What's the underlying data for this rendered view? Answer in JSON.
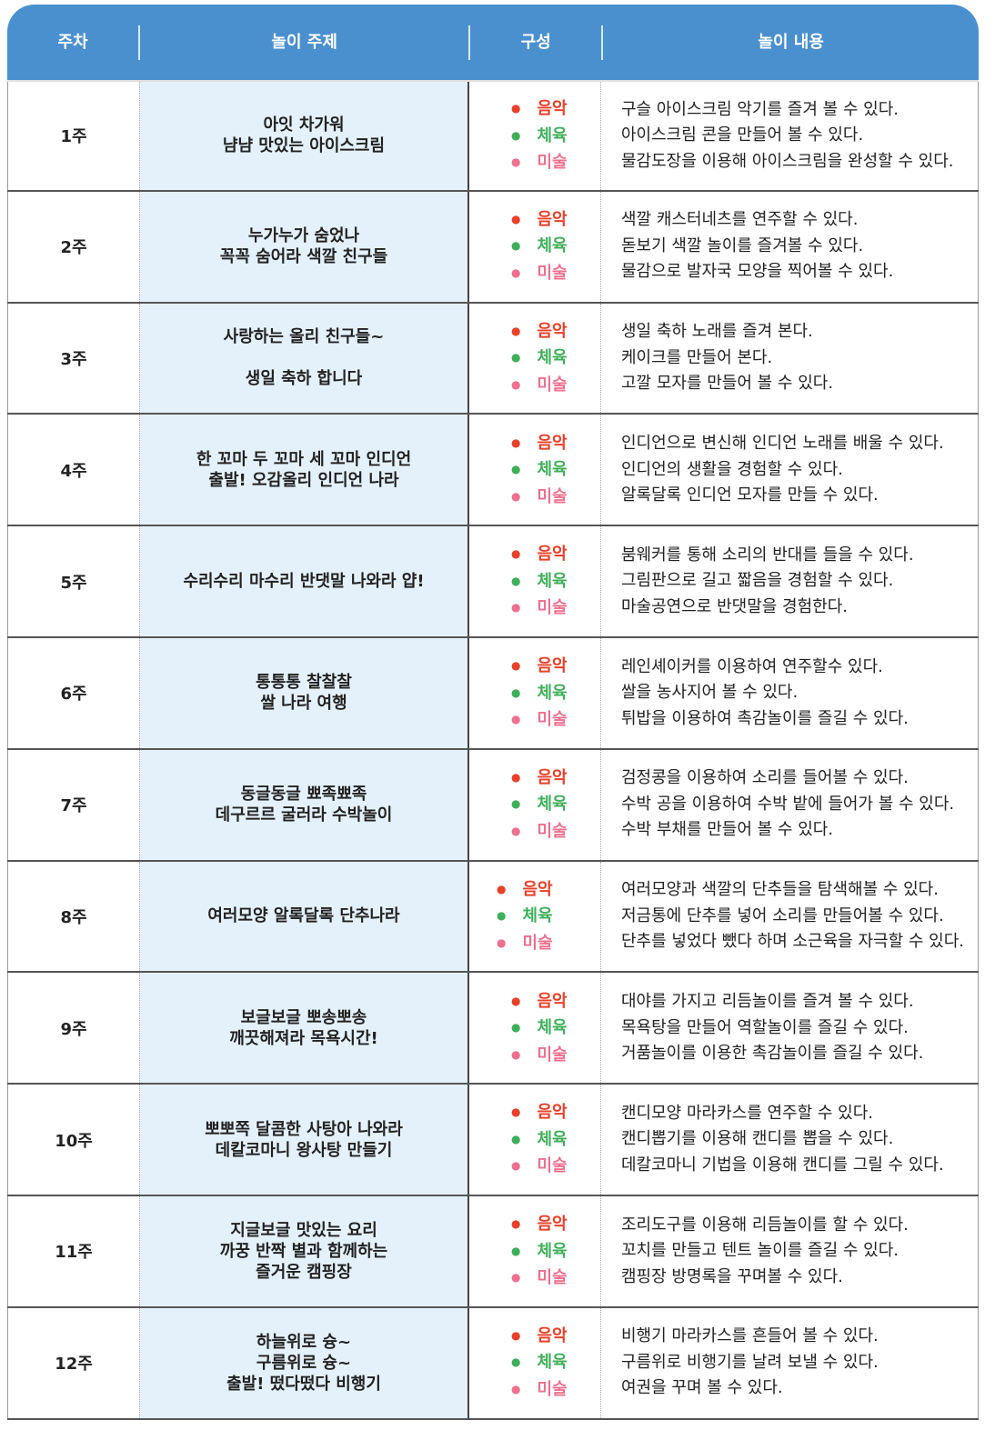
{
  "header": {
    "week": "주차",
    "topic": "놀이 주제",
    "composition": "구성",
    "content": "놀이 내용"
  },
  "colors": {
    "header_bg": "#4a90cf",
    "topic_bg": "#e4f1fa",
    "music": "#e8402a",
    "pe": "#3fae5a",
    "art": "#ee6f8e"
  },
  "components": [
    "음악",
    "체육",
    "미술"
  ],
  "rows": [
    {
      "week": "1주",
      "topic": "아잇 차가워\n냠냠 맛있는 아이스크림",
      "content": [
        "구슬 아이스크림 악기를 즐겨 볼 수 있다.",
        "아이스크림 콘을 만들어 볼 수 있다.",
        "물감도장을 이용해 아이스크림을 완성할 수 있다."
      ]
    },
    {
      "week": "2주",
      "topic": "누가누가 숨었나\n꼭꼭 숨어라 색깔 친구들",
      "content": [
        "색깔 캐스터네츠를 연주할 수 있다.",
        "돋보기 색깔 놀이를 즐겨볼 수 있다.",
        "물감으로 발자국 모양을 찍어볼 수 있다."
      ]
    },
    {
      "week": "3주",
      "topic": "사랑하는 올리 친구들~\n\n생일 축하 합니다",
      "content": [
        "생일 축하 노래를 즐겨 본다.",
        "케이크를 만들어 본다.",
        "고깔 모자를 만들어 볼 수 있다."
      ]
    },
    {
      "week": "4주",
      "topic": "한 꼬마 두 꼬마 세 꼬마 인디언\n출발! 오감올리 인디언 나라",
      "content": [
        "인디언으로 변신해 인디언 노래를 배울 수 있다.",
        "인디언의 생활을 경험할 수 있다.",
        "알록달록 인디언 모자를 만들 수 있다."
      ]
    },
    {
      "week": "5주",
      "topic": "수리수리 마수리 반댓말 나와라 얍!",
      "content": [
        "붐웨커를 통해 소리의 반대를 들을 수 있다.",
        "그림판으로 길고 짧음을 경험할 수 있다.",
        "마술공연으로 반댓말을 경험한다."
      ]
    },
    {
      "week": "6주",
      "topic": "통통통 찰찰찰\n쌀 나라 여행",
      "content": [
        "레인셰이커를 이용하여 연주할수 있다.",
        "쌀을 농사지어 볼 수 있다.",
        "튀밥을 이용하여 촉감놀이를 즐길 수 있다."
      ]
    },
    {
      "week": "7주",
      "topic": "동글동글 뾰족뾰족\n데구르르 굴러라 수박놀이",
      "content": [
        "검정콩을 이용하여 소리를 들어볼 수 있다.",
        "수박 공을 이용하여 수박 밭에 들어가 볼 수 있다.",
        "수박 부채를 만들어 볼 수 있다."
      ]
    },
    {
      "week": "8주",
      "topic": "여러모양 알록달록 단추나라",
      "content": [
        "여러모양과 색깔의 단추들을 탐색해볼 수 있다.",
        "저금통에 단추를 넣어 소리를 만들어볼 수 있다.",
        "단추를 넣었다 뺐다 하며 소근육을 자극할 수 있다."
      ]
    },
    {
      "week": "9주",
      "topic": "보글보글 뽀송뽀송\n깨끗해져라 목욕시간!",
      "content": [
        "대야를 가지고 리듬놀이를 즐겨 볼 수 있다.",
        "목욕탕을 만들어 역할놀이를 즐길 수 있다.",
        "거품놀이를 이용한 촉감놀이를 즐길 수 있다."
      ]
    },
    {
      "week": "10주",
      "topic": "뽀뽀쪽 달콤한 사탕아 나와라\n데칼코마니 왕사탕 만들기",
      "content": [
        "캔디모양 마라카스를 연주할 수 있다.",
        "캔디뽑기를 이용해 캔디를 뽑을 수 있다.",
        "데칼코마니 기법을 이용해 캔디를 그릴 수 있다."
      ]
    },
    {
      "week": "11주",
      "topic": "지글보글 맛있는 요리\n까꿍 반짝 별과 함께하는\n즐거운 캠핑장",
      "content": [
        "조리도구를 이용해 리듬놀이를 할 수 있다.",
        "꼬치를 만들고 텐트 놀이를 즐길 수 있다.",
        "캠핑장 방명록을 꾸며볼 수 있다."
      ]
    },
    {
      "week": "12주",
      "topic": "하늘위로 슝~\n구름위로 슝~\n출발! 떴다떴다 비행기",
      "content": [
        "비행기 마라카스를 흔들어 볼 수 있다.",
        "구름위로 비행기를 날려 보낼 수 있다.",
        "여권을 꾸며 볼 수 있다."
      ]
    }
  ]
}
